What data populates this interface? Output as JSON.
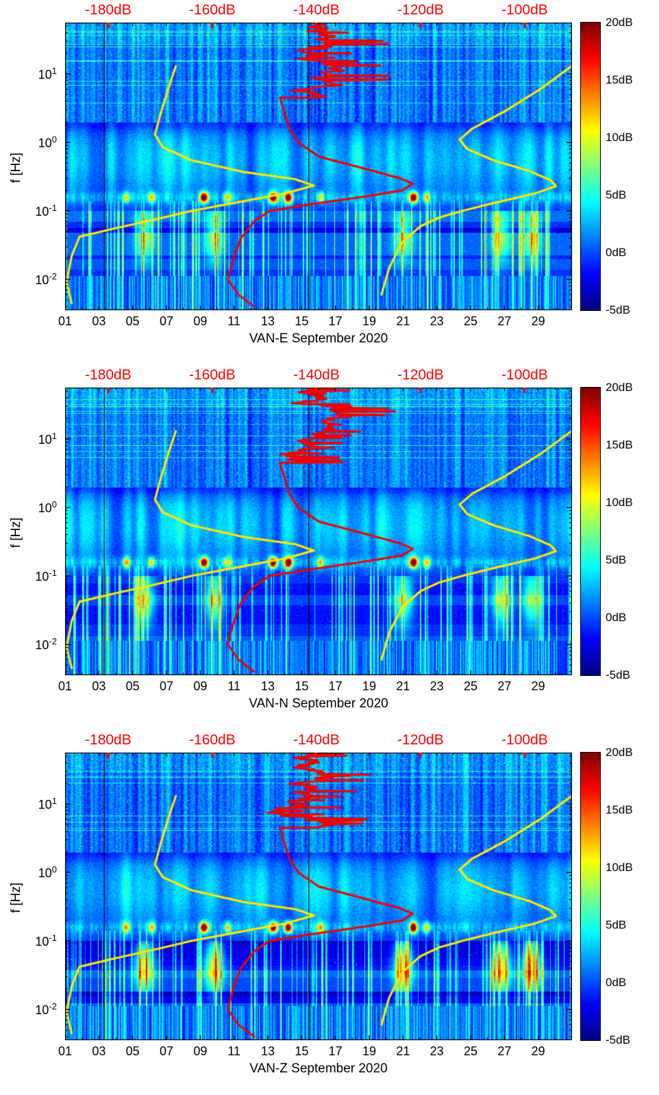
{
  "figure": {
    "background": "#ffffff",
    "accent_red": "#ff0000",
    "accent_yellow": "#ffe800",
    "axis_color": "#000000"
  },
  "chart_data": {
    "type": "heatmap",
    "subtype": "spectrogram",
    "layout": "three vertically stacked spectrogram panels sharing identical axes, jet colormap, colorbar at right, red dB scale along top",
    "panels": [
      {
        "name": "VAN-E",
        "xlabel": "VAN-E September 2020"
      },
      {
        "name": "VAN-N",
        "xlabel": "VAN-N September 2020"
      },
      {
        "name": "VAN-Z",
        "xlabel": "VAN-Z September 2020"
      }
    ],
    "x_axis": {
      "unit": "day of month",
      "range": [
        1,
        31
      ],
      "tick_values": [
        1,
        3,
        5,
        7,
        9,
        11,
        13,
        15,
        17,
        19,
        21,
        23,
        25,
        27,
        29
      ],
      "tick_labels": [
        "01",
        "03",
        "05",
        "07",
        "09",
        "11",
        "13",
        "15",
        "17",
        "19",
        "21",
        "23",
        "25",
        "27",
        "29"
      ],
      "minor_tick_every_days": 1
    },
    "y_axis": {
      "label": "f [Hz]",
      "scale": "log",
      "range_hz": [
        0.0035,
        56
      ],
      "tick_exponents": [
        1,
        0,
        -1,
        -2
      ],
      "tick_labels": [
        "10^1",
        "10^0",
        "10^-1",
        "10^-2"
      ]
    },
    "color_axis": {
      "unit": "dB",
      "range": [
        -5,
        20
      ],
      "colormap": "jet",
      "tick_values": [
        20,
        15,
        10,
        5,
        0,
        -5
      ],
      "tick_labels": [
        "20dB",
        "15dB",
        "10dB",
        "5dB",
        "0dB",
        "-5dB"
      ]
    },
    "top_axis": {
      "unit": "dB",
      "color": "#ff0000",
      "tick_values": [
        -180,
        -160,
        -140,
        -120,
        -100
      ],
      "tick_labels": [
        "-180dB",
        "-160dB",
        "-140dB",
        "-120dB",
        "-100dB"
      ],
      "frac_at_minus180dB": 0.085,
      "frac_per_dB": 0.01027
    },
    "overlay_lines": {
      "red_spectrum_curve": [
        [
          -147,
          4.5
        ],
        [
          -146.2,
          2.8
        ],
        [
          -145.2,
          1.6
        ],
        [
          -143.5,
          1.0
        ],
        [
          -139.5,
          0.62
        ],
        [
          -131,
          0.42
        ],
        [
          -124,
          0.3
        ],
        [
          -121.5,
          0.25
        ],
        [
          -123.5,
          0.2
        ],
        [
          -130,
          0.165
        ],
        [
          -141,
          0.125
        ],
        [
          -149,
          0.1
        ],
        [
          -152,
          0.07
        ],
        [
          -154.5,
          0.04
        ],
        [
          -156,
          0.02
        ],
        [
          -157,
          0.01
        ],
        [
          -155,
          0.006
        ],
        [
          -152,
          0.004
        ]
      ],
      "red_jagged_params": {
        "f_range_hz": [
          4.5,
          55
        ],
        "dB_mean": -140,
        "dB_spread": 11
      },
      "yellow_left_curve": [
        [
          -167,
          13
        ],
        [
          -168.5,
          6
        ],
        [
          -170,
          2.5
        ],
        [
          -171,
          1.3
        ],
        [
          -169.5,
          0.85
        ],
        [
          -164,
          0.55
        ],
        [
          -154,
          0.37
        ],
        [
          -144,
          0.29
        ],
        [
          -140.5,
          0.235
        ],
        [
          -146,
          0.18
        ],
        [
          -156,
          0.13
        ],
        [
          -164,
          0.1
        ],
        [
          -171,
          0.075
        ],
        [
          -179,
          0.055
        ],
        [
          -185.5,
          0.042
        ],
        [
          -187,
          0.022
        ],
        [
          -188,
          0.009
        ],
        [
          -187,
          0.0045
        ]
      ],
      "yellow_right_curve": [
        [
          -91,
          13
        ],
        [
          -97,
          6
        ],
        [
          -104,
          2.8
        ],
        [
          -110,
          1.6
        ],
        [
          -112.5,
          1.1
        ],
        [
          -111,
          0.8
        ],
        [
          -106,
          0.55
        ],
        [
          -99,
          0.38
        ],
        [
          -95,
          0.28
        ],
        [
          -94,
          0.23
        ],
        [
          -98,
          0.18
        ],
        [
          -106,
          0.13
        ],
        [
          -112,
          0.1
        ],
        [
          -116.5,
          0.08
        ],
        [
          -120,
          0.06
        ],
        [
          -123.5,
          0.035
        ],
        [
          -126,
          0.015
        ],
        [
          -127.5,
          0.006
        ]
      ]
    },
    "heatmap_features": {
      "background_level_db": -3,
      "microseism_cyan_band_hz": [
        0.2,
        2
      ],
      "hot_spot_frequency_hz": 0.16,
      "hot_spot_days_strong": [
        9.2,
        13.3,
        14.2,
        21.6
      ],
      "hot_spot_days_moderate": [
        4.6,
        6.1,
        10.6,
        16.1,
        22.4
      ],
      "low_freq_banded_region_hz": [
        0.011,
        0.1
      ],
      "low_freq_warm_column_days": [
        5.7,
        9.8,
        21.0,
        26.8,
        28.6
      ],
      "data_gap_days": [
        3.3,
        15.4
      ],
      "panel_low_freq_warm_gain": [
        1.0,
        1.1,
        1.45
      ]
    }
  }
}
